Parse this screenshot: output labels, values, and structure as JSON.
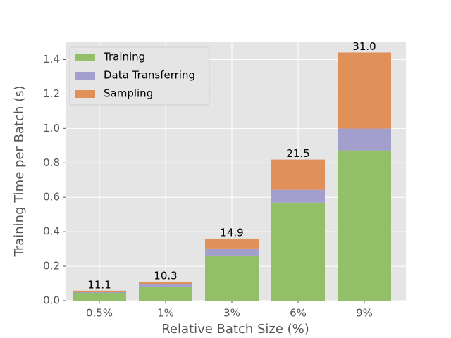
{
  "chart_data": {
    "type": "stacked_bar",
    "x_label": "Relative Batch Size (%)",
    "y_label": "Training Time per Batch (s)",
    "categories": [
      "0.5%",
      "1%",
      "3%",
      "6%",
      "9%"
    ],
    "series": [
      {
        "name": "Training",
        "color": "#92bf67",
        "values": [
          0.045,
          0.082,
          0.262,
          0.569,
          0.872
        ]
      },
      {
        "name": "Data Transferring",
        "color": "#a29fcc",
        "values": [
          0.008,
          0.016,
          0.041,
          0.074,
          0.127
        ]
      },
      {
        "name": "Sampling",
        "color": "#e0915a",
        "values": [
          0.005,
          0.012,
          0.057,
          0.176,
          0.442
        ]
      }
    ],
    "annotations": [
      "11.1",
      "10.3",
      "14.9",
      "21.5",
      "31.0"
    ],
    "ylim": [
      0,
      1.5
    ],
    "yticks": [
      {
        "value": 0,
        "label": "0.0"
      },
      {
        "value": 0.2,
        "label": "0.2"
      },
      {
        "value": 0.4,
        "label": "0.4"
      },
      {
        "value": 0.6,
        "label": "0.6"
      },
      {
        "value": 0.8,
        "label": "0.8"
      },
      {
        "value": 1.0,
        "label": "1.0"
      },
      {
        "value": 1.2,
        "label": "1.2"
      },
      {
        "value": 1.4,
        "label": "1.4"
      }
    ],
    "grid": true,
    "legend_position": "upper-left"
  }
}
